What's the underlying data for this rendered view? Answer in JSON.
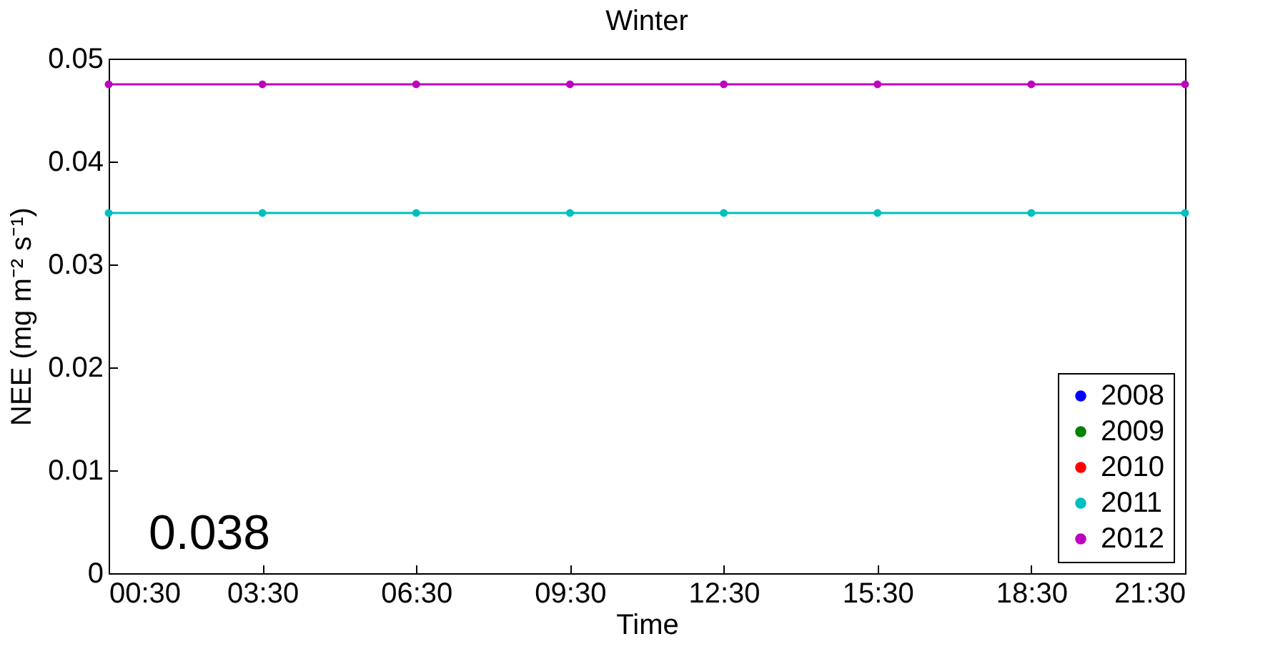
{
  "chart_data": {
    "type": "line",
    "title": "Winter",
    "xlabel": "Time",
    "ylabel": "NEE (mg m⁻² s⁻¹)",
    "categories": [
      "00:30",
      "03:30",
      "06:30",
      "09:30",
      "12:30",
      "15:30",
      "18:30",
      "21:30"
    ],
    "series": [
      {
        "name": "2008",
        "color": "#0000ff",
        "values": [
          null,
          null,
          null,
          null,
          null,
          null,
          null,
          null
        ]
      },
      {
        "name": "2009",
        "color": "#008000",
        "values": [
          null,
          null,
          null,
          null,
          null,
          null,
          null,
          null
        ]
      },
      {
        "name": "2010",
        "color": "#ff0000",
        "values": [
          null,
          null,
          null,
          null,
          null,
          null,
          null,
          null
        ]
      },
      {
        "name": "2011",
        "color": "#00bfbf",
        "values": [
          0.035,
          0.035,
          0.035,
          0.035,
          0.035,
          0.035,
          0.035,
          0.035
        ]
      },
      {
        "name": "2012",
        "color": "#bf00bf",
        "values": [
          0.0475,
          0.0475,
          0.0475,
          0.0475,
          0.0475,
          0.0475,
          0.0475,
          0.0475
        ]
      }
    ],
    "ylim": [
      0,
      0.05
    ],
    "yticks": [
      0,
      0.01,
      0.02,
      0.03,
      0.04,
      0.05
    ],
    "legend": "bottom right",
    "marker": "circle",
    "line_style": "solid",
    "grid": false,
    "annotations": [
      "0.038"
    ]
  }
}
